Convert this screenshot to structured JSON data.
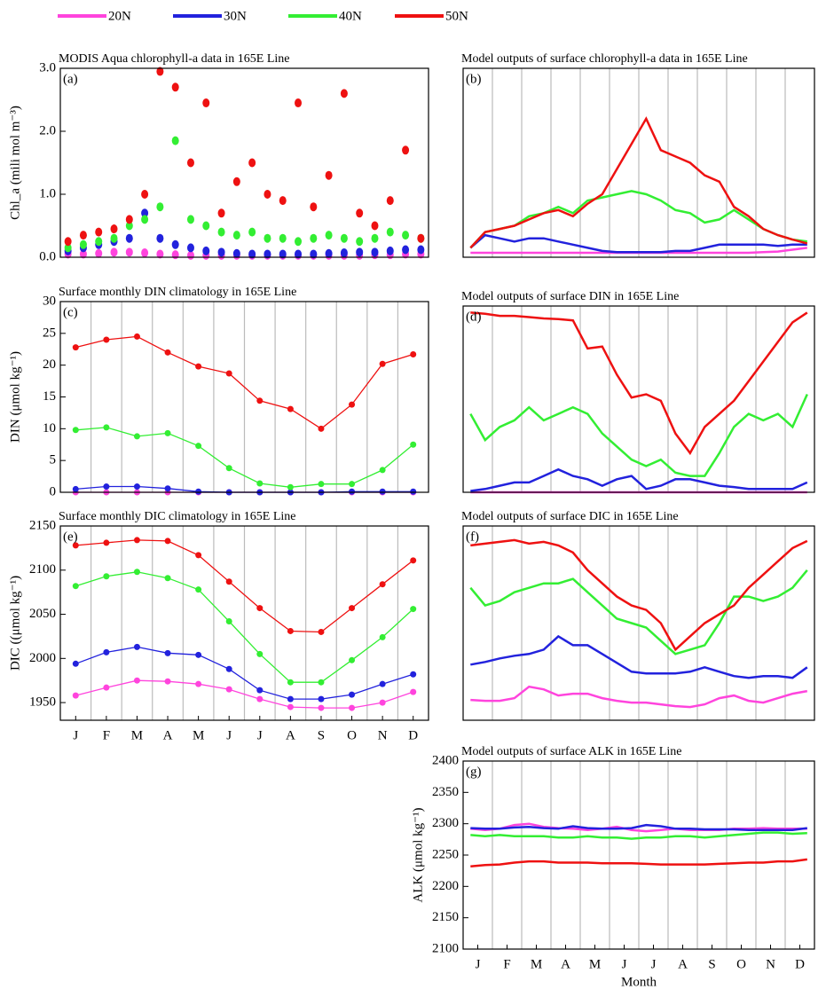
{
  "legend": [
    {
      "name": "20N",
      "color": "#ff44dd"
    },
    {
      "name": "30N",
      "color": "#2222dd"
    },
    {
      "name": "40N",
      "color": "#33ee33"
    },
    {
      "name": "50N",
      "color": "#ee1111"
    }
  ],
  "chart_data": [
    {
      "type": "scatter",
      "title": "MODIS Aqua chlorophyll-a data in 165E Line",
      "label": "(a)",
      "ylabel": "Chl_a (mili mol m⁻³)",
      "x": [
        0.25,
        0.75,
        1.25,
        1.75,
        2.25,
        2.75,
        3.25,
        3.75,
        4.25,
        4.75,
        5.25,
        5.75,
        6.25,
        6.75,
        7.25,
        7.75,
        8.25,
        8.75,
        9.25,
        9.75,
        10.25,
        10.75,
        11.25,
        11.75
      ],
      "xlim": [
        0,
        12
      ],
      "ylim": [
        0,
        3
      ],
      "yticks": [
        {
          "value": 0,
          "label": "0.0"
        },
        {
          "value": 1,
          "label": "1.0"
        },
        {
          "value": 2,
          "label": "2.0"
        },
        {
          "value": 3,
          "label": "3.0"
        }
      ],
      "xgrid": [],
      "series": [
        {
          "color": "#ff44dd",
          "values": [
            0.05,
            0.05,
            0.06,
            0.08,
            0.08,
            0.07,
            0.05,
            0.04,
            0.03,
            0.03,
            0.03,
            0.03,
            0.03,
            0.03,
            0.03,
            0.03,
            0.03,
            0.03,
            0.03,
            0.03,
            0.04,
            0.04,
            0.05,
            0.05
          ]
        },
        {
          "color": "#2222dd",
          "values": [
            0.1,
            0.15,
            0.2,
            0.25,
            0.3,
            0.7,
            0.3,
            0.2,
            0.15,
            0.1,
            0.08,
            0.06,
            0.05,
            0.05,
            0.05,
            0.05,
            0.05,
            0.06,
            0.07,
            0.08,
            0.08,
            0.1,
            0.12,
            0.12
          ]
        },
        {
          "color": "#33ee33",
          "values": [
            0.15,
            0.2,
            0.25,
            0.3,
            0.5,
            0.6,
            0.8,
            1.85,
            0.6,
            0.5,
            0.4,
            0.35,
            0.4,
            0.3,
            0.3,
            0.25,
            0.3,
            0.35,
            0.3,
            0.25,
            0.3,
            0.4,
            0.35,
            0.3
          ]
        },
        {
          "color": "#ee1111",
          "values": [
            0.25,
            0.35,
            0.4,
            0.45,
            0.6,
            1.0,
            2.95,
            2.7,
            1.5,
            2.45,
            0.7,
            1.2,
            1.5,
            1.0,
            0.9,
            2.45,
            0.8,
            1.3,
            2.6,
            0.7,
            0.5,
            0.9,
            1.7,
            0.3
          ]
        }
      ]
    },
    {
      "type": "line",
      "title": "Model outputs of surface chlorophyll-a data in 165E Line",
      "label": "(b)",
      "x": [
        0.25,
        0.75,
        1.25,
        1.75,
        2.25,
        2.75,
        3.25,
        3.75,
        4.25,
        4.75,
        5.25,
        5.75,
        6.25,
        6.75,
        7.25,
        7.75,
        8.25,
        8.75,
        9.25,
        9.75,
        10.25,
        10.75,
        11.25,
        11.75
      ],
      "xlim": [
        0,
        12
      ],
      "ylim": [
        0,
        3
      ],
      "xgrid": [
        1,
        2,
        3,
        4,
        5,
        6,
        7,
        8,
        9,
        10,
        11
      ],
      "series": [
        {
          "color": "#ff44dd",
          "values": [
            0.07,
            0.07,
            0.07,
            0.07,
            0.07,
            0.07,
            0.07,
            0.07,
            0.07,
            0.07,
            0.07,
            0.07,
            0.07,
            0.07,
            0.07,
            0.07,
            0.07,
            0.07,
            0.07,
            0.07,
            0.08,
            0.09,
            0.12,
            0.15
          ]
        },
        {
          "color": "#2222dd",
          "values": [
            0.15,
            0.35,
            0.3,
            0.25,
            0.3,
            0.3,
            0.25,
            0.2,
            0.15,
            0.1,
            0.08,
            0.08,
            0.08,
            0.08,
            0.1,
            0.1,
            0.15,
            0.2,
            0.2,
            0.2,
            0.2,
            0.18,
            0.2,
            0.2
          ]
        },
        {
          "color": "#33ee33",
          "values": [
            0.15,
            0.4,
            0.45,
            0.5,
            0.65,
            0.7,
            0.8,
            0.7,
            0.9,
            0.95,
            1.0,
            1.05,
            1.0,
            0.9,
            0.75,
            0.7,
            0.55,
            0.6,
            0.75,
            0.6,
            0.45,
            0.35,
            0.28,
            0.25
          ]
        },
        {
          "color": "#ee1111",
          "values": [
            0.15,
            0.4,
            0.45,
            0.5,
            0.6,
            0.7,
            0.75,
            0.65,
            0.85,
            1.0,
            1.4,
            1.8,
            2.2,
            1.7,
            1.6,
            1.5,
            1.3,
            1.2,
            0.8,
            0.65,
            0.45,
            0.35,
            0.28,
            0.22
          ]
        }
      ]
    },
    {
      "type": "line",
      "markers": true,
      "title": "Surface monthly DIN climatology in 165E Line",
      "label": "(c)",
      "ylabel": "DIN (μmol kg⁻¹)",
      "x": [
        0.5,
        1.5,
        2.5,
        3.5,
        4.5,
        5.5,
        6.5,
        7.5,
        8.5,
        9.5,
        10.5,
        11.5
      ],
      "xlim": [
        0,
        12
      ],
      "ylim": [
        0,
        30
      ],
      "yticks": [
        0,
        5,
        10,
        15,
        20,
        25,
        30
      ],
      "xgrid": [
        1,
        2,
        3,
        4,
        5,
        6,
        7,
        8,
        9,
        10,
        11
      ],
      "series": [
        {
          "color": "#ff44dd",
          "values": [
            0,
            0,
            0,
            0,
            0,
            0,
            0,
            0,
            0,
            0,
            0,
            0
          ]
        },
        {
          "color": "#2222dd",
          "values": [
            0.5,
            0.9,
            0.9,
            0.6,
            0.1,
            0,
            0,
            0,
            0,
            0.1,
            0.1,
            0.1
          ]
        },
        {
          "color": "#33ee33",
          "values": [
            9.8,
            10.2,
            8.8,
            9.3,
            7.3,
            3.8,
            1.4,
            0.8,
            1.3,
            1.3,
            3.5,
            7.5
          ]
        },
        {
          "color": "#ee1111",
          "values": [
            22.8,
            24,
            24.5,
            22,
            19.8,
            18.7,
            14.4,
            13.1,
            10,
            13.8,
            20.2,
            21.7
          ]
        }
      ]
    },
    {
      "type": "line",
      "title": "Model outputs of surface DIN in 165E Line",
      "label": "(d)",
      "x": [
        0.25,
        0.75,
        1.25,
        1.75,
        2.25,
        2.75,
        3.25,
        3.75,
        4.25,
        4.75,
        5.25,
        5.75,
        6.25,
        6.75,
        7.25,
        7.75,
        8.25,
        8.75,
        9.25,
        9.75,
        10.25,
        10.75,
        11.25,
        11.75
      ],
      "xlim": [
        0,
        12
      ],
      "ylim": [
        0,
        28.5
      ],
      "xgrid": [
        1,
        2,
        3,
        4,
        5,
        6,
        7,
        8,
        9,
        10,
        11
      ],
      "series": [
        {
          "color": "#ff44dd",
          "values": [
            0,
            0,
            0,
            0,
            0,
            0,
            0,
            0,
            0,
            0,
            0,
            0,
            0,
            0,
            0,
            0,
            0,
            0,
            0,
            0,
            0,
            0,
            0,
            0
          ]
        },
        {
          "color": "#2222dd",
          "values": [
            0.2,
            0.5,
            1,
            1.5,
            1.5,
            2.5,
            3.5,
            2.5,
            2,
            1,
            2,
            2.5,
            0.5,
            1,
            2,
            2,
            1.5,
            1,
            0.8,
            0.5,
            0.5,
            0.5,
            0.5,
            1.5
          ]
        },
        {
          "color": "#33ee33",
          "values": [
            12,
            8,
            10,
            11,
            13,
            11,
            12,
            13,
            12,
            9,
            7,
            5,
            4,
            5,
            3,
            2.5,
            2.5,
            6,
            10,
            12,
            11,
            12,
            10,
            15
          ]
        },
        {
          "color": "#ee1111",
          "values": [
            27.5,
            27.3,
            27,
            27,
            26.8,
            26.6,
            26.5,
            26.3,
            22,
            22.3,
            18,
            14.5,
            15,
            14,
            9,
            6,
            10,
            12,
            14,
            17,
            20,
            23,
            26,
            27.5
          ]
        }
      ]
    },
    {
      "type": "line",
      "markers": true,
      "title": "Surface monthly DIC climatology in 165E Line",
      "label": "(e)",
      "ylabel": "DIC ((μmol kg⁻¹)",
      "x": [
        0.5,
        1.5,
        2.5,
        3.5,
        4.5,
        5.5,
        6.5,
        7.5,
        8.5,
        9.5,
        10.5,
        11.5
      ],
      "xlim": [
        0,
        12
      ],
      "ylim": [
        1930,
        2150
      ],
      "yticks": [
        1950,
        2000,
        2050,
        2100,
        2150
      ],
      "xgrid": [
        1,
        2,
        3,
        4,
        5,
        6,
        7,
        8,
        9,
        10,
        11
      ],
      "xticks": [
        {
          "value": 0.5,
          "label": "J"
        },
        {
          "value": 1.5,
          "label": "F"
        },
        {
          "value": 2.5,
          "label": "M"
        },
        {
          "value": 3.5,
          "label": "A"
        },
        {
          "value": 4.5,
          "label": "M"
        },
        {
          "value": 5.5,
          "label": "J"
        },
        {
          "value": 6.5,
          "label": "J"
        },
        {
          "value": 7.5,
          "label": "A"
        },
        {
          "value": 8.5,
          "label": "S"
        },
        {
          "value": 9.5,
          "label": "O"
        },
        {
          "value": 10.5,
          "label": "N"
        },
        {
          "value": 11.5,
          "label": "D"
        }
      ],
      "series": [
        {
          "color": "#ff44dd",
          "values": [
            1958,
            1967,
            1975,
            1974,
            1971,
            1965,
            1954,
            1945,
            1944,
            1944,
            1950,
            1962
          ]
        },
        {
          "color": "#2222dd",
          "values": [
            1994,
            2007,
            2013,
            2006,
            2004,
            1988,
            1964,
            1954,
            1954,
            1959,
            1971,
            1982
          ]
        },
        {
          "color": "#33ee33",
          "values": [
            2082,
            2093,
            2098,
            2091,
            2078,
            2042,
            2005,
            1973,
            1973,
            1998,
            2024,
            2056
          ]
        },
        {
          "color": "#ee1111",
          "values": [
            2128,
            2131,
            2134,
            2133,
            2117,
            2087,
            2057,
            2031,
            2030,
            2057,
            2084,
            2111
          ]
        }
      ]
    },
    {
      "type": "line",
      "title": "Model outputs of surface DIC in 165E Line",
      "label": "(f)",
      "x": [
        0.25,
        0.75,
        1.25,
        1.75,
        2.25,
        2.75,
        3.25,
        3.75,
        4.25,
        4.75,
        5.25,
        5.75,
        6.25,
        6.75,
        7.25,
        7.75,
        8.25,
        8.75,
        9.25,
        9.75,
        10.25,
        10.75,
        11.25,
        11.75
      ],
      "xlim": [
        0,
        12
      ],
      "ylim": [
        1930,
        2150
      ],
      "xgrid": [
        1,
        2,
        3,
        4,
        5,
        6,
        7,
        8,
        9,
        10,
        11
      ],
      "series": [
        {
          "color": "#ff44dd",
          "values": [
            1953,
            1952,
            1952,
            1955,
            1968,
            1965,
            1958,
            1960,
            1960,
            1955,
            1952,
            1950,
            1950,
            1948,
            1946,
            1945,
            1948,
            1955,
            1958,
            1952,
            1950,
            1955,
            1960,
            1963
          ]
        },
        {
          "color": "#2222dd",
          "values": [
            1993,
            1996,
            2000,
            2003,
            2005,
            2010,
            2025,
            2015,
            2015,
            2005,
            1995,
            1985,
            1983,
            1983,
            1983,
            1985,
            1990,
            1985,
            1980,
            1978,
            1980,
            1980,
            1978,
            1990
          ]
        },
        {
          "color": "#33ee33",
          "values": [
            2080,
            2060,
            2065,
            2075,
            2080,
            2085,
            2085,
            2090,
            2075,
            2060,
            2045,
            2040,
            2035,
            2020,
            2005,
            2010,
            2015,
            2040,
            2070,
            2070,
            2065,
            2070,
            2080,
            2100
          ]
        },
        {
          "color": "#ee1111",
          "values": [
            2128,
            2130,
            2132,
            2134,
            2130,
            2132,
            2128,
            2120,
            2100,
            2085,
            2070,
            2060,
            2055,
            2040,
            2010,
            2025,
            2040,
            2050,
            2060,
            2080,
            2095,
            2110,
            2125,
            2133
          ]
        }
      ]
    },
    {
      "type": "line",
      "title": "Model outputs of surface ALK in 165E Line",
      "label": "(g)",
      "ylabel": "ALK (μmol kg⁻¹)",
      "xlabel": "Month",
      "x": [
        0.25,
        0.75,
        1.25,
        1.75,
        2.25,
        2.75,
        3.25,
        3.75,
        4.25,
        4.75,
        5.25,
        5.75,
        6.25,
        6.75,
        7.25,
        7.75,
        8.25,
        8.75,
        9.25,
        9.75,
        10.25,
        10.75,
        11.25,
        11.75
      ],
      "xlim": [
        0,
        12
      ],
      "ylim": [
        2100,
        2400
      ],
      "yticks": [
        2100,
        2150,
        2200,
        2250,
        2300,
        2350,
        2400
      ],
      "xgrid": [
        1,
        2,
        3,
        4,
        5,
        6,
        7,
        8,
        9,
        10,
        11
      ],
      "xticks": [
        {
          "value": 0.5,
          "label": "J"
        },
        {
          "value": 1.5,
          "label": "F"
        },
        {
          "value": 2.5,
          "label": "M"
        },
        {
          "value": 3.5,
          "label": "A"
        },
        {
          "value": 4.5,
          "label": "M"
        },
        {
          "value": 5.5,
          "label": "J"
        },
        {
          "value": 6.5,
          "label": "J"
        },
        {
          "value": 7.5,
          "label": "A"
        },
        {
          "value": 8.5,
          "label": "S"
        },
        {
          "value": 9.5,
          "label": "O"
        },
        {
          "value": 10.5,
          "label": "N"
        },
        {
          "value": 11.5,
          "label": "D"
        }
      ],
      "series": [
        {
          "color": "#ff44dd",
          "values": [
            2292,
            2290,
            2292,
            2298,
            2300,
            2295,
            2293,
            2292,
            2290,
            2292,
            2295,
            2290,
            2288,
            2290,
            2292,
            2290,
            2290,
            2290,
            2292,
            2292,
            2293,
            2292,
            2292,
            2292
          ]
        },
        {
          "color": "#2222dd",
          "values": [
            2293,
            2292,
            2292,
            2294,
            2295,
            2293,
            2292,
            2296,
            2293,
            2292,
            2292,
            2293,
            2298,
            2296,
            2292,
            2292,
            2291,
            2291,
            2291,
            2290,
            2290,
            2290,
            2290,
            2293
          ]
        },
        {
          "color": "#33ee33",
          "values": [
            2282,
            2280,
            2282,
            2280,
            2280,
            2280,
            2278,
            2278,
            2280,
            2278,
            2278,
            2276,
            2278,
            2278,
            2280,
            2280,
            2278,
            2280,
            2282,
            2284,
            2286,
            2286,
            2284,
            2285
          ]
        },
        {
          "color": "#ee1111",
          "values": [
            2232,
            2234,
            2235,
            2238,
            2240,
            2240,
            2238,
            2238,
            2238,
            2237,
            2237,
            2237,
            2236,
            2235,
            2235,
            2235,
            2235,
            2236,
            2237,
            2238,
            2238,
            2240,
            2240,
            2243
          ]
        }
      ]
    }
  ]
}
